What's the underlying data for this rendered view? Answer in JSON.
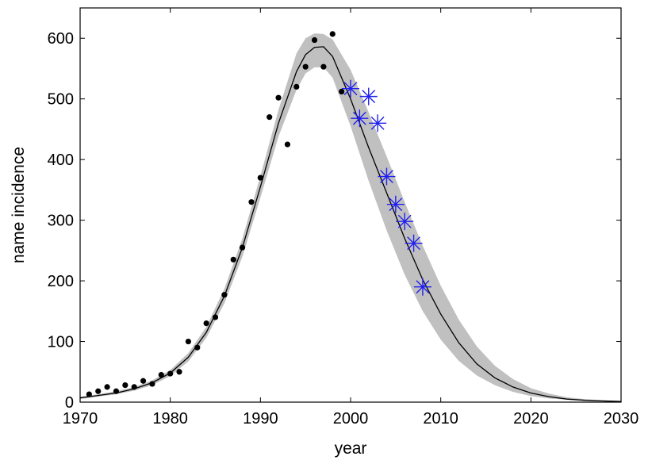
{
  "chart_data": {
    "type": "line",
    "xlabel": "year",
    "ylabel": "name incidence",
    "xlim": [
      1970,
      2030
    ],
    "ylim": [
      0,
      650
    ],
    "xticks": [
      1970,
      1980,
      1990,
      2000,
      2010,
      2020,
      2030
    ],
    "yticks": [
      0,
      100,
      200,
      300,
      400,
      500,
      600
    ],
    "grid": false,
    "legend": "none",
    "colors": {
      "band": "#c0c0c0",
      "line": "#000000",
      "dots": "#000000",
      "stars": "#2020ee"
    },
    "model": {
      "x": [
        1970,
        1972,
        1974,
        1976,
        1978,
        1980,
        1982,
        1984,
        1986,
        1988,
        1990,
        1992,
        1994,
        1995,
        1996,
        1997,
        1998,
        2000,
        2002,
        2004,
        2006,
        2008,
        2010,
        2012,
        2014,
        2016,
        2018,
        2020,
        2022,
        2024,
        2026,
        2028,
        2030
      ],
      "y": [
        7,
        11,
        15,
        22,
        32,
        48,
        74,
        115,
        175,
        255,
        355,
        460,
        545,
        573,
        585,
        586,
        570,
        500,
        420,
        345,
        270,
        202,
        145,
        98,
        63,
        40,
        25,
        15,
        9,
        5,
        3,
        2,
        1
      ],
      "lower": [
        5,
        9,
        13,
        19,
        28,
        43,
        67,
        106,
        163,
        240,
        337,
        438,
        515,
        542,
        552,
        552,
        535,
        455,
        365,
        283,
        210,
        150,
        103,
        68,
        44,
        28,
        17,
        10,
        6,
        4,
        2,
        1,
        1
      ],
      "upper": [
        9,
        13,
        18,
        25,
        36,
        53,
        81,
        124,
        187,
        270,
        373,
        482,
        575,
        600,
        608,
        607,
        598,
        548,
        478,
        405,
        330,
        258,
        192,
        136,
        92,
        60,
        38,
        23,
        14,
        8,
        5,
        3,
        2
      ]
    },
    "observed": {
      "x": [
        1971,
        1972,
        1973,
        1974,
        1975,
        1976,
        1977,
        1978,
        1979,
        1980,
        1981,
        1982,
        1983,
        1984,
        1985,
        1986,
        1987,
        1988,
        1989,
        1990,
        1991,
        1992,
        1993,
        1994,
        1995,
        1996,
        1997,
        1998,
        1999
      ],
      "y": [
        13,
        18,
        25,
        18,
        28,
        25,
        35,
        30,
        45,
        47,
        50,
        100,
        90,
        130,
        140,
        177,
        235,
        255,
        330,
        370,
        470,
        502,
        425,
        520,
        553,
        597,
        553,
        607,
        512
      ]
    },
    "recent": {
      "x": [
        2000,
        2001,
        2002,
        2003,
        2004,
        2005,
        2006,
        2007,
        2008
      ],
      "y": [
        517,
        468,
        504,
        460,
        372,
        326,
        298,
        262,
        190
      ]
    }
  }
}
